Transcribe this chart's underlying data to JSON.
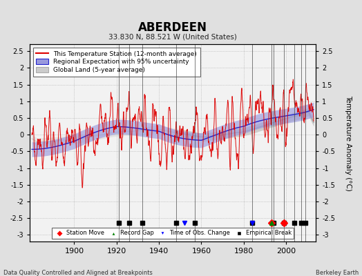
{
  "title": "ABERDEEN",
  "subtitle": "33.830 N, 88.521 W (United States)",
  "ylabel": "Temperature Anomaly (°C)",
  "xlabel_note": "Data Quality Controlled and Aligned at Breakpoints",
  "credit": "Berkeley Earth",
  "year_start": 1880,
  "year_end": 2013,
  "ylim": [
    -3.2,
    2.7
  ],
  "yticks": [
    -3,
    -2.5,
    -2,
    -1.5,
    -1,
    -0.5,
    0,
    0.5,
    1,
    1.5,
    2,
    2.5
  ],
  "xticks": [
    1900,
    1920,
    1940,
    1960,
    1980,
    2000
  ],
  "background_color": "#e0e0e0",
  "plot_bg_color": "#f2f2f2",
  "station_color": "#dd0000",
  "regional_color": "#2222cc",
  "regional_fill_color": "#9999dd",
  "global_color": "#aaaaaa",
  "global_fill_color": "#cccccc",
  "empirical_breaks": [
    1921,
    1926,
    1932,
    1948,
    1957,
    1984,
    1994,
    1999,
    2004,
    2007,
    2009
  ],
  "station_moves": [
    1993,
    1999
  ],
  "record_gaps": [
    1993
  ],
  "obs_changes": [
    1952,
    1984
  ],
  "vert_lines": [
    1921,
    1926,
    1932,
    1948,
    1957,
    1984,
    1993,
    1994,
    1999,
    2004,
    2007,
    2009
  ]
}
